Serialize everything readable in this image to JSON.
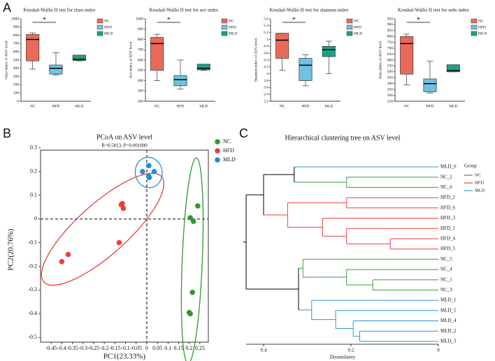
{
  "panels": [
    "A",
    "B",
    "C"
  ],
  "chart_data": [
    {
      "type": "box",
      "title": "Kruskal-Wallis H test for chao index",
      "ylabel": "Chao index of ASV level",
      "categories": [
        "NC",
        "HFD",
        "MLD"
      ],
      "colors": [
        "#ea6a5a",
        "#6ec3e0",
        "#1aa38a"
      ],
      "boxes": [
        {
          "min": 390,
          "q1": 490,
          "median": 750,
          "q3": 810,
          "max": 830
        },
        {
          "min": 320,
          "q1": 330,
          "median": 400,
          "q3": 440,
          "max": 590
        },
        {
          "min": 490,
          "q1": 495,
          "median": 510,
          "q3": 560,
          "max": 560
        }
      ],
      "ylim": [
        0,
        1000
      ],
      "yticks": [
        0,
        100,
        200,
        300,
        400,
        500,
        600,
        700,
        800,
        900,
        1000
      ],
      "significance": {
        "label": "*",
        "between": [
          "NC",
          "HFD"
        ]
      }
    },
    {
      "type": "box",
      "title": "Kruskal-Wallis H test for ace index",
      "ylabel": "Ace index of ASV level",
      "categories": [
        "NC",
        "HFD",
        "MLD"
      ],
      "colors": [
        "#ea6a5a",
        "#6ec3e0",
        "#1aa38a"
      ],
      "boxes": [
        {
          "min": 400,
          "q1": 500,
          "median": 760,
          "q3": 820,
          "max": 850
        },
        {
          "min": 320,
          "q1": 350,
          "median": 410,
          "q3": 450,
          "max": 600
        },
        {
          "min": 500,
          "q1": 505,
          "median": 520,
          "q3": 560,
          "max": 560
        }
      ],
      "ylim": [
        200,
        1000
      ],
      "yticks": [
        200,
        300,
        400,
        500,
        600,
        700,
        800,
        900,
        1000
      ],
      "significance": {
        "label": "*",
        "between": [
          "NC",
          "HFD"
        ]
      }
    },
    {
      "type": "box",
      "title": "Kruskal-Wallis H test for shannon index",
      "ylabel": "Shannon index of ASV level",
      "categories": [
        "NC",
        "HFD",
        "MLD"
      ],
      "colors": [
        "#ea6a5a",
        "#6ec3e0",
        "#1aa38a"
      ],
      "boxes": [
        {
          "min": 4.1,
          "q1": 4.45,
          "median": 4.98,
          "q3": 5.18,
          "max": 5.18
        },
        {
          "min": 3.65,
          "q1": 3.8,
          "median": 4.25,
          "q3": 4.45,
          "max": 4.55
        },
        {
          "min": 4.0,
          "q1": 4.5,
          "median": 4.7,
          "q3": 4.8,
          "max": 4.95
        }
      ],
      "ylim": [
        3.2,
        5.6
      ],
      "yticks": [
        3.2,
        3.4,
        3.6,
        3.8,
        4,
        4.2,
        4.4,
        4.6,
        4.8,
        5,
        5.2,
        5.4,
        5.6
      ],
      "significance": {
        "label": "*",
        "between": [
          "NC",
          "HFD"
        ]
      }
    },
    {
      "type": "box",
      "title": "Kruskal-Wallis H test for sobs index",
      "ylabel": "Sobs index of ASV level",
      "categories": [
        "NC",
        "HFD",
        "MLD"
      ],
      "colors": [
        "#ea6a5a",
        "#6ec3e0",
        "#1aa38a"
      ],
      "boxes": [
        {
          "min": 390,
          "q1": 480,
          "median": 740,
          "q3": 800,
          "max": 820
        },
        {
          "min": 320,
          "q1": 330,
          "median": 400,
          "q3": 440,
          "max": 590
        },
        {
          "min": 500,
          "q1": 500,
          "median": 510,
          "q3": 560,
          "max": 560
        }
      ],
      "ylim": [
        250,
        950
      ],
      "yticks": [
        250,
        300,
        350,
        400,
        450,
        500,
        550,
        600,
        650,
        700,
        750,
        800,
        850,
        900,
        950
      ],
      "significance": {
        "label": "*",
        "between": [
          "NC",
          "HFD"
        ]
      }
    },
    {
      "type": "scatter",
      "title": "PCoA on ASV level",
      "subtitle": "R=0.5813, P=0.001000",
      "xlabel": "PC1(23.33%)",
      "ylabel": "PC2(20.76%)",
      "series": [
        {
          "name": "NC",
          "color": "#2e9a2e",
          "x": [
            0.205,
            0.22,
            0.24,
            0.215,
            0.2,
            0.205
          ],
          "values": [
            0.005,
            -0.01,
            0.055,
            -0.31,
            -0.395,
            -0.4
          ]
        },
        {
          "name": "HFD",
          "color": "#e8413c",
          "x": [
            -0.4,
            -0.37,
            -0.12,
            -0.11,
            -0.13,
            -0.115
          ],
          "values": [
            -0.18,
            -0.15,
            0.06,
            0.045,
            -0.1,
            0.065
          ]
        },
        {
          "name": "MLD",
          "color": "#1f8fd6",
          "x": [
            -0.02,
            0.01,
            0.035,
            0.01,
            0.012
          ],
          "values": [
            0.2,
            0.225,
            0.2,
            0.18,
            0.175
          ]
        }
      ],
      "xlim": [
        -0.5,
        0.29
      ],
      "xticks": [
        -0.45,
        -0.4,
        -0.35,
        -0.3,
        -0.25,
        -0.2,
        -0.15,
        -0.1,
        -0.05,
        0,
        0.05,
        0.1,
        0.15,
        0.2,
        0.25
      ],
      "ylim": [
        -0.52,
        0.32
      ],
      "yticks": [
        -0.5,
        -0.4,
        -0.3,
        -0.2,
        -0.1,
        0,
        0.1,
        0.2,
        0.3
      ]
    },
    {
      "type": "dendrogram",
      "title": "Hierarchical clustering tree on ASV level",
      "xlabel": "Dissimilarity",
      "xlim": [
        0.44,
        0
      ],
      "xticks": [
        0.4,
        0.2,
        0
      ],
      "legend": {
        "title": "Group",
        "series": [
          {
            "name": "NC",
            "color": "#3a9a3a"
          },
          {
            "name": "HFD",
            "color": "#e8413c"
          },
          {
            "name": "MLD",
            "color": "#2d95d8"
          }
        ]
      },
      "tree": {
        "height": 0.44,
        "children": [
          {
            "height": 0.4,
            "children": [
              {
                "height": 0.33,
                "children": [
                  {
                    "label": "MLD_6",
                    "group": "MLD"
                  },
                  {
                    "height": 0.21,
                    "children": [
                      {
                        "label": "NC_2",
                        "group": "NC"
                      },
                      {
                        "label": "NC_6",
                        "group": "NC"
                      }
                    ]
                  }
                ]
              },
              {
                "height": 0.345,
                "children": [
                  {
                    "height": 0.21,
                    "children": [
                      {
                        "label": "HFD_2",
                        "group": "HFD"
                      },
                      {
                        "label": "HFD_6",
                        "group": "HFD"
                      }
                    ]
                  },
                  {
                    "height": 0.265,
                    "children": [
                      {
                        "label": "HFD_3",
                        "group": "HFD"
                      },
                      {
                        "height": 0.21,
                        "children": [
                          {
                            "label": "HFD_1",
                            "group": "HFD"
                          },
                          {
                            "height": 0.11,
                            "children": [
                              {
                                "label": "HFD_4",
                                "group": "HFD"
                              },
                              {
                                "label": "HFD_5",
                                "group": "HFD"
                              }
                            ]
                          }
                        ]
                      }
                    ]
                  }
                ]
              }
            ]
          },
          {
            "height": 0.32,
            "children": [
              {
                "height": 0.31,
                "children": [
                  {
                    "label": "NC_5",
                    "group": "NC"
                  },
                  {
                    "height": 0.21,
                    "children": [
                      {
                        "label": "NC_4",
                        "group": "NC"
                      },
                      {
                        "height": 0.15,
                        "children": [
                          {
                            "label": "NC_1",
                            "group": "NC"
                          },
                          {
                            "label": "NC_3",
                            "group": "NC"
                          }
                        ]
                      }
                    ]
                  }
                ]
              },
              {
                "height": 0.29,
                "children": [
                  {
                    "label": "MLD_1",
                    "group": "MLD"
                  },
                  {
                    "height": 0.235,
                    "children": [
                      {
                        "label": "MLD_5",
                        "group": "MLD"
                      },
                      {
                        "height": 0.195,
                        "children": [
                          {
                            "label": "MLD_4",
                            "group": "MLD"
                          },
                          {
                            "height": 0.18,
                            "children": [
                              {
                                "label": "MLD_2",
                                "group": "MLD"
                              },
                              {
                                "label": "MLD_3",
                                "group": "MLD"
                              }
                            ]
                          }
                        ]
                      }
                    ]
                  }
                ]
              }
            ]
          }
        ]
      }
    }
  ]
}
